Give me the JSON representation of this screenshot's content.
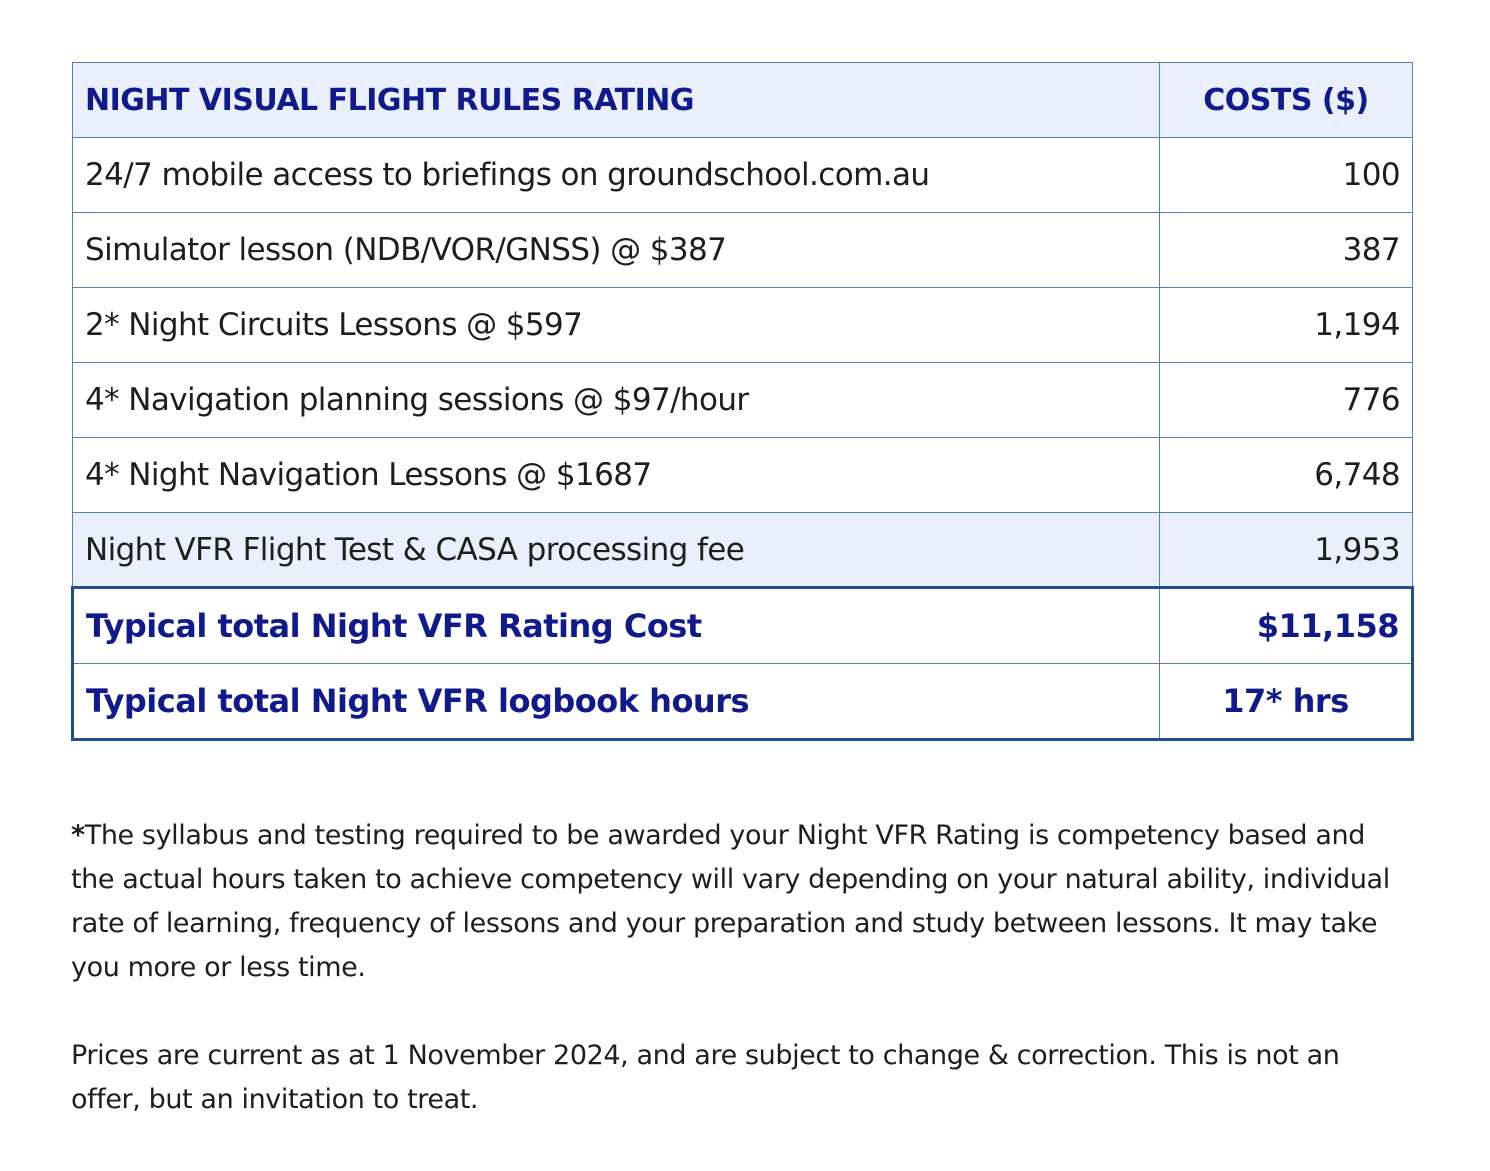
{
  "table": {
    "header": {
      "item": "NIGHT VISUAL FLIGHT RULES RATING",
      "cost": "COSTS ($)"
    },
    "rows": [
      {
        "item": "24/7 mobile access to briefings on groundschool.com.au",
        "cost": "100"
      },
      {
        "item": "Simulator lesson (NDB/VOR/GNSS) @ $387",
        "cost": "387"
      },
      {
        "item": "2* Night Circuits Lessons @ $597",
        "cost": "1,194"
      },
      {
        "item": "4* Navigation planning sessions @ $97/hour",
        "cost": "776"
      },
      {
        "item": "4* Night Navigation Lessons @ $1687",
        "cost": "6,748"
      },
      {
        "item": "Night VFR Flight Test & CASA processing fee",
        "cost": "1,953"
      }
    ],
    "total_cost": {
      "label": "Typical total Night VFR Rating Cost",
      "value": "$11,158"
    },
    "total_hours": {
      "label": "Typical total Night VFR logbook hours",
      "value": "17* hrs"
    }
  },
  "footnotes": {
    "asterisk": "*",
    "syllabus": "The syllabus and testing required to be awarded your Night VFR Rating is competency based and the actual hours taken to achieve competency will vary depending on your natural ability, individual rate of learning, frequency of lessons and your preparation and study between lessons. It may take you more or less time.",
    "prices": "Prices are current as at 1 November 2024, and are subject to change & correction. This is not an offer, but an invitation to treat."
  },
  "colors": {
    "header_text": "#101a8c",
    "header_bg": "#e9f0fb",
    "border": "#5a7fb8",
    "total_border": "#1f4f8f"
  }
}
